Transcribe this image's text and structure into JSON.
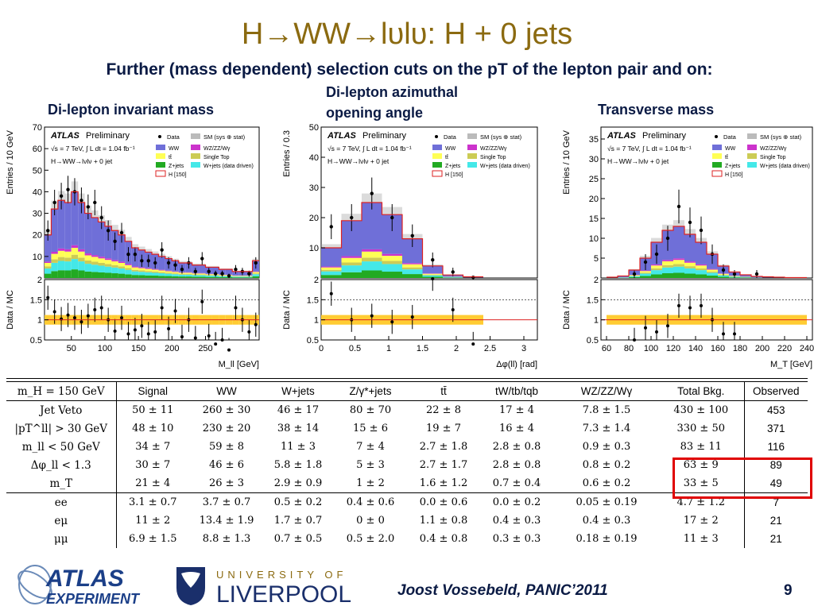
{
  "slide": {
    "title": "H→WW→lυlυ: H + 0 jets",
    "subtitle": "Further (mass dependent) selection cuts on the pT of the lepton pair and on:",
    "page_number": "9",
    "footer_author": "Joost Vossebeld, PANIC’2011",
    "logos": {
      "atlas": "ATLAS EXPERIMENT",
      "liverpool_top": "UNIVERSITY OF",
      "liverpool_bottom": "LIVERPOOL"
    },
    "plot_labels": [
      "Di-lepton invariant mass",
      "Di-lepton azimuthal opening angle",
      "Transverse mass"
    ]
  },
  "legend": {
    "atlas": "ATLAS",
    "preliminary": "Preliminary",
    "lumi": "√s = 7 TeV, ∫ L dt = 1.04 fb⁻¹",
    "channel": "H→WW→lνlν + 0 jet",
    "entries": [
      "Data",
      "SM (sys ⊕ stat)",
      "WW",
      "WZ/ZZ/Wγ",
      "tt̄",
      "Single Top",
      "Z+jets",
      "W+jets (data driven)",
      "H [150]"
    ]
  },
  "colors": {
    "ww": "#6f6fd8",
    "wz": "#cc33cc",
    "ttbar": "#ffff55",
    "singletop": "#cccc55",
    "zjets": "#22aa22",
    "wjets": "#44e8e8",
    "higgs": "#dd2222",
    "band": "#ffcc33",
    "title": "#8b6a10",
    "accent": "#0a1a44"
  },
  "chart_data": [
    {
      "type": "bar",
      "title": "Di-lepton invariant mass",
      "xlabel": "M_ll [GeV]",
      "ylabel": "Entries / 10 GeV",
      "ratio_ylabel": "Data / MC",
      "xlim": [
        10,
        330
      ],
      "ylim": [
        0,
        70
      ],
      "ratio_ylim": [
        0.5,
        2
      ],
      "xticks": [
        50,
        100,
        150,
        200,
        250
      ],
      "yticks": [
        10,
        20,
        30,
        40,
        50,
        60,
        70
      ],
      "ratio_yticks": [
        0.5,
        1,
        1.5,
        2
      ],
      "bin_width": 10,
      "x": [
        15,
        25,
        35,
        45,
        55,
        65,
        75,
        85,
        95,
        105,
        115,
        125,
        135,
        145,
        155,
        165,
        175,
        185,
        195,
        205,
        215,
        225,
        235,
        245,
        255,
        265,
        275,
        285,
        295,
        305,
        315,
        325
      ],
      "mc_total": [
        20,
        32,
        36,
        35,
        40,
        35,
        30,
        28,
        26,
        24,
        22,
        20,
        17,
        14,
        13,
        12,
        11,
        10,
        9,
        8,
        7,
        7,
        6,
        6,
        5,
        5,
        4,
        4,
        3,
        3,
        3,
        8
      ],
      "data": [
        22,
        35,
        38,
        41,
        40,
        36,
        33,
        35,
        28,
        22,
        17,
        21,
        11,
        11,
        8,
        8,
        7,
        13,
        7,
        6,
        4,
        7,
        3,
        9,
        3,
        2,
        2,
        1,
        4,
        3,
        2,
        7
      ],
      "ratio": [
        1.55,
        1.2,
        1.02,
        1.12,
        1.05,
        0.95,
        1.1,
        1.25,
        1.3,
        1.0,
        0.72,
        1.05,
        0.65,
        0.75,
        0.85,
        0.65,
        0.7,
        1.3,
        0.78,
        1.22,
        0.58,
        1.0,
        0.55,
        1.45,
        0.6,
        0.4,
        0.5,
        0.25,
        1.3,
        1.0,
        0.7,
        0.88
      ]
    },
    {
      "type": "bar",
      "title": "Di-lepton azimuthal opening angle",
      "xlabel": "Δφ(ll) [rad]",
      "ylabel": "Entries / 0.3",
      "ratio_ylabel": "Data / MC",
      "xlim": [
        0,
        3.2
      ],
      "ylim": [
        0,
        50
      ],
      "ratio_ylim": [
        0.5,
        2
      ],
      "xticks": [
        0,
        0.5,
        1,
        1.5,
        2,
        2.5,
        3
      ],
      "yticks": [
        10,
        20,
        30,
        40,
        50
      ],
      "ratio_yticks": [
        0.5,
        1,
        1.5,
        2
      ],
      "bin_width": 0.3,
      "x": [
        0.15,
        0.45,
        0.75,
        1.05,
        1.35,
        1.65,
        1.95,
        2.25
      ],
      "mc_total": [
        10,
        19,
        25,
        21,
        13,
        4,
        1,
        0.4
      ],
      "data": [
        17,
        20,
        28,
        20,
        14,
        6,
        2,
        0.2
      ],
      "ratio": [
        1.65,
        1.0,
        1.1,
        0.95,
        1.07,
        2.02,
        1.25,
        0.4
      ]
    },
    {
      "type": "bar",
      "title": "Transverse mass",
      "xlabel": "M_T [GeV]",
      "ylabel": "Entries / 10 GeV",
      "ratio_ylabel": "Data / MC",
      "xlim": [
        55,
        245
      ],
      "ylim": [
        0,
        38
      ],
      "ratio_ylim": [
        0.5,
        2
      ],
      "xticks": [
        60,
        80,
        100,
        120,
        140,
        160,
        180,
        200,
        220,
        240
      ],
      "yticks": [
        5,
        10,
        15,
        20,
        25,
        30,
        35
      ],
      "ratio_yticks": [
        0.5,
        1,
        1.5,
        2
      ],
      "bin_width": 10,
      "x": [
        65,
        75,
        85,
        95,
        105,
        115,
        125,
        135,
        145,
        155,
        165,
        175,
        185,
        195,
        205,
        215,
        225,
        235
      ],
      "mc_total": [
        0.2,
        0.5,
        2,
        5,
        9,
        12,
        13,
        11,
        9,
        6,
        3,
        1.5,
        0.8,
        0.4,
        0.3,
        0.2,
        0.1,
        0.1
      ],
      "data": [
        0,
        0,
        1,
        4,
        6,
        10,
        18,
        14,
        12,
        6,
        2,
        1,
        0,
        1,
        0,
        0,
        0,
        0
      ],
      "ratio": [
        0,
        0,
        0.5,
        0.8,
        0.7,
        0.85,
        1.35,
        1.3,
        1.35,
        1.0,
        0.65,
        0.65,
        0,
        0,
        0,
        0,
        0,
        0
      ]
    },
    {
      "type": "table",
      "header": [
        "m_H = 150 GeV",
        "Signal",
        "WW",
        "W+jets",
        "Z/γ*+jets",
        "tt̄",
        "tW/tb/tqb",
        "WZ/ZZ/Wγ",
        "Total Bkg.",
        "Observed"
      ],
      "rows": [
        [
          "Jet Veto",
          "50 ± 11",
          "260 ± 30",
          "46 ± 17",
          "80 ± 70",
          "22 ± 8",
          "17 ± 4",
          "7.8 ± 1.5",
          "430 ± 100",
          "453"
        ],
        [
          "|pT^ll| > 30 GeV",
          "48 ± 10",
          "230 ± 20",
          "38 ± 14",
          "15 ± 6",
          "19 ± 7",
          "16 ± 4",
          "7.3 ± 1.4",
          "330 ± 50",
          "371"
        ],
        [
          "m_ll < 50 GeV",
          "34 ± 7",
          "59 ± 8",
          "11 ± 3",
          "7 ± 4",
          "2.7 ± 1.8",
          "2.8 ± 0.8",
          "0.9 ± 0.3",
          "83 ± 11",
          "116"
        ],
        [
          "Δφ_ll < 1.3",
          "30 ± 7",
          "46 ± 6",
          "5.8 ± 1.8",
          "5 ± 3",
          "2.7 ± 1.7",
          "2.8 ± 0.8",
          "0.8 ± 0.2",
          "63 ± 9",
          "89"
        ],
        [
          "m_T",
          "21 ± 4",
          "26 ± 3",
          "2.9 ± 0.9",
          "1 ± 2",
          "1.6 ± 1.2",
          "0.7 ± 0.4",
          "0.6 ± 0.2",
          "33 ± 5",
          "49"
        ],
        [
          "ee",
          "3.1 ± 0.7",
          "3.7 ± 0.7",
          "0.5 ± 0.2",
          "0.4 ± 0.6",
          "0.0 ± 0.6",
          "0.0 ± 0.2",
          "0.05 ± 0.19",
          "4.7 ± 1.2",
          "7"
        ],
        [
          "eμ",
          "11 ± 2",
          "13.4 ± 1.9",
          "1.7 ± 0.7",
          "0 ± 0",
          "1.1 ± 0.8",
          "0.4 ± 0.3",
          "0.4 ± 0.3",
          "17 ± 2",
          "21"
        ],
        [
          "μμ",
          "6.9 ± 1.5",
          "8.8 ± 1.3",
          "0.7 ± 0.5",
          "0.5 ± 2.0",
          "0.4 ± 0.8",
          "0.3 ± 0.3",
          "0.18 ± 0.19",
          "11 ± 3",
          "21"
        ]
      ]
    }
  ]
}
